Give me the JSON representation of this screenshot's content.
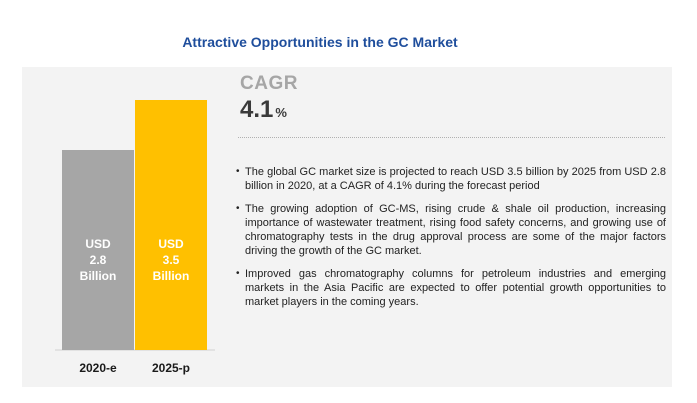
{
  "title": "Attractive Opportunities in the GC Market",
  "cagr": {
    "label": "CAGR",
    "value": "4.1",
    "unit": "%"
  },
  "bullets": [
    "The global GC market size is projected to reach USD 3.5 billion by 2025 from USD 2.8 billion in 2020, at a CAGR of 4.1% during the forecast period",
    "The growing adoption of GC-MS, rising crude & shale oil production, increasing importance of wastewater treatment, rising food safety concerns, and growing use of chromatography tests in the drug approval process are some of the major factors driving the growth of the GC market.",
    "Improved gas chromatography columns for petroleum industries and emerging markets in the Asia Pacific are expected to offer potential growth opportunities to market players in the coming years."
  ],
  "colors": {
    "bar_2020": "#a6a6a6",
    "bar_2025": "#ffc000",
    "title": "#1f4e9c",
    "panel": "#f3f3f3"
  },
  "chart_data": {
    "type": "bar",
    "categories": [
      "2020-e",
      "2025-p"
    ],
    "values": [
      2.8,
      3.5
    ],
    "value_labels": [
      [
        "USD",
        "2.8",
        "Billion"
      ],
      [
        "USD",
        "3.5",
        "Billion"
      ]
    ],
    "unit": "USD Billion",
    "title": "",
    "xlabel": "",
    "ylabel": "",
    "ylim": [
      0,
      3.5
    ],
    "grid": false,
    "legend": "none"
  }
}
